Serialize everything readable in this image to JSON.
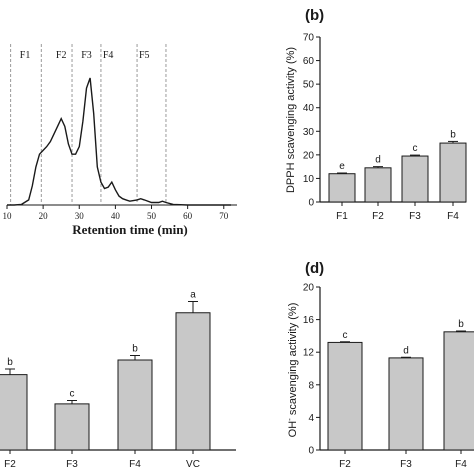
{
  "colors": {
    "ink": "#1a1a1a",
    "bar_fill": "#c8c8c8",
    "divider": "#9a9a9a"
  },
  "chart_data": [
    {
      "type": "line",
      "title": "",
      "xlabel": "Retention time (min)",
      "ylabel": "",
      "xlim": [
        10,
        72
      ],
      "xticks": [
        10,
        20,
        30,
        40,
        50,
        60,
        70
      ],
      "fractions": [
        {
          "label": "F1",
          "x": 15
        },
        {
          "label": "F2",
          "x": 25
        },
        {
          "label": "F3",
          "x": 32
        },
        {
          "label": "F4",
          "x": 38
        },
        {
          "label": "F5",
          "x": 48
        }
      ],
      "dividers": [
        11,
        19.5,
        28,
        36,
        46,
        54
      ],
      "series": [
        {
          "x": [
            10,
            12,
            14,
            16,
            17,
            18,
            19,
            20,
            21,
            22,
            23,
            24,
            25,
            26,
            27,
            28,
            29,
            30,
            31,
            32,
            33,
            34,
            35,
            36,
            37,
            38,
            39,
            40,
            41,
            42,
            44,
            46,
            47,
            48,
            50,
            52,
            53,
            54,
            56,
            60,
            65,
            70,
            72
          ],
          "y": [
            0.0,
            0.0,
            0.005,
            0.04,
            0.15,
            0.3,
            0.4,
            0.43,
            0.46,
            0.5,
            0.56,
            0.62,
            0.68,
            0.62,
            0.48,
            0.4,
            0.4,
            0.46,
            0.66,
            0.92,
            1.0,
            0.72,
            0.3,
            0.18,
            0.13,
            0.14,
            0.18,
            0.12,
            0.07,
            0.05,
            0.03,
            0.04,
            0.05,
            0.04,
            0.02,
            0.02,
            0.03,
            0.02,
            0.005,
            0.0,
            0.0,
            0.0,
            0.0
          ]
        }
      ]
    },
    {
      "type": "bar",
      "panel_label": "(b)",
      "ylabel": "DPPH scavenging activity (%)",
      "categories": [
        "F1",
        "F2",
        "F3",
        "F4"
      ],
      "values": [
        12,
        14.5,
        19.5,
        25
      ],
      "errors": [
        0.3,
        0.5,
        0.4,
        0.7
      ],
      "letters": [
        "e",
        "d",
        "c",
        "b"
      ],
      "ylim": [
        0,
        70
      ],
      "yticks": [
        0,
        10,
        20,
        30,
        40,
        50,
        60,
        70
      ]
    },
    {
      "type": "bar",
      "categories": [
        "F2",
        "F3",
        "F4",
        "VC"
      ],
      "values": [
        33.5,
        20.5,
        40,
        61
      ],
      "errors": [
        2.5,
        1.5,
        2.0,
        5.0
      ],
      "letters": [
        "b",
        "c",
        "b",
        "a"
      ],
      "ylim": [
        0,
        80
      ]
    },
    {
      "type": "bar",
      "panel_label": "(d)",
      "ylabel_pre": "OH",
      "ylabel_sup": "-",
      "ylabel_post": " scavenging activity (%)",
      "categories": [
        "F2",
        "F3",
        "F4"
      ],
      "values": [
        13.2,
        11.3,
        14.5
      ],
      "errors": [
        0.08,
        0.08,
        0.1
      ],
      "letters": [
        "c",
        "d",
        "b"
      ],
      "ylim": [
        0,
        20
      ],
      "yticks": [
        0,
        4,
        8,
        12,
        16,
        20
      ]
    }
  ]
}
